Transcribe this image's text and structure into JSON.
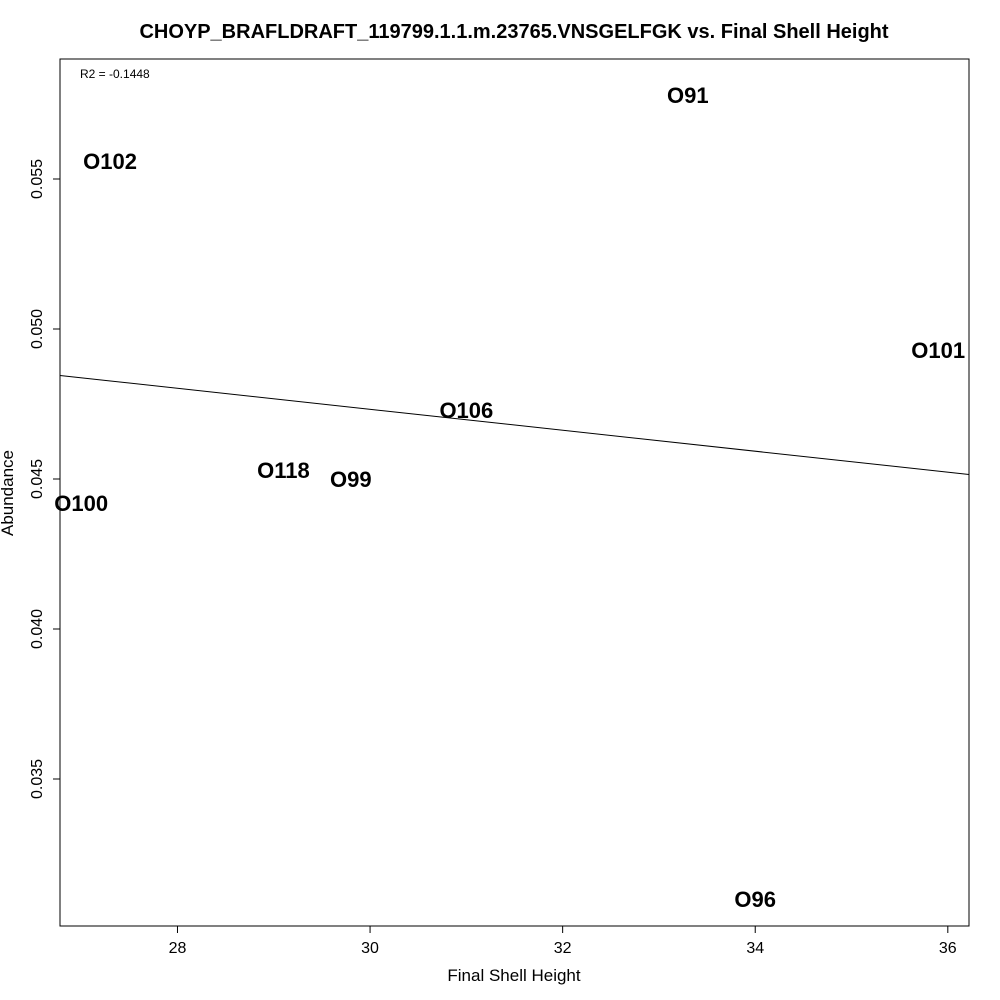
{
  "chart_data": {
    "type": "scatter",
    "title": "CHOYP_BRAFLDRAFT_119799.1.1.m.23765.VNSGELFGK vs. Final Shell Height",
    "xlabel": "Final Shell Height",
    "ylabel": "Abundance",
    "annotation": "R2 = -0.1448",
    "xlim": [
      26.78,
      36.22
    ],
    "ylim": [
      0.0301,
      0.059
    ],
    "xticks": [
      28,
      30,
      32,
      34,
      36
    ],
    "yticks": [
      0.035,
      0.04,
      0.045,
      0.05,
      0.055
    ],
    "points": [
      {
        "label": "O91",
        "x": 33.3,
        "y": 0.0578
      },
      {
        "label": "O102",
        "x": 27.3,
        "y": 0.0556
      },
      {
        "label": "O101",
        "x": 35.9,
        "y": 0.0493
      },
      {
        "label": "O106",
        "x": 31.0,
        "y": 0.0473
      },
      {
        "label": "O118",
        "x": 29.1,
        "y": 0.0453
      },
      {
        "label": "O99",
        "x": 29.8,
        "y": 0.045
      },
      {
        "label": "O100",
        "x": 27.0,
        "y": 0.0442
      },
      {
        "label": "O96",
        "x": 34.0,
        "y": 0.031
      }
    ],
    "fit_line": {
      "x": [
        26.78,
        36.22
      ],
      "y": [
        0.04845,
        0.04515
      ]
    },
    "grid": false,
    "legend": "none"
  }
}
